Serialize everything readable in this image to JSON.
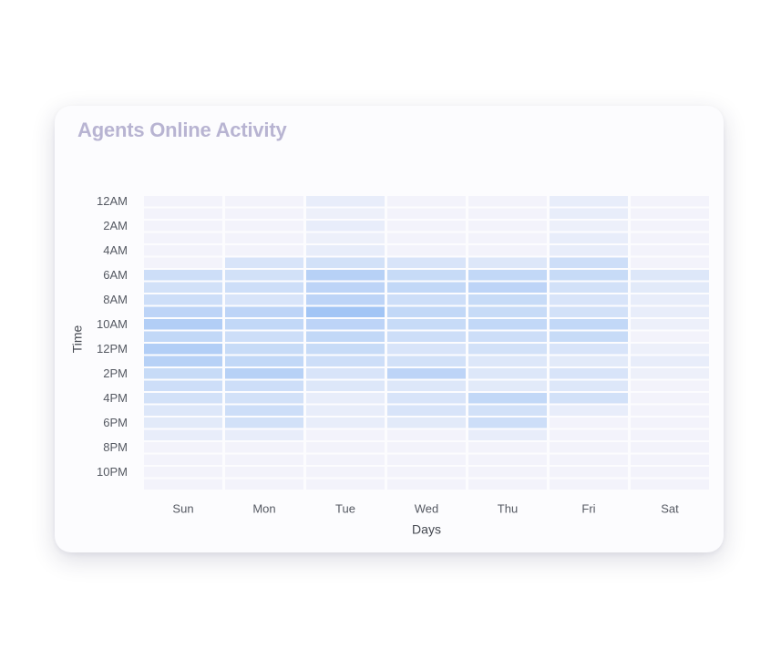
{
  "card": {
    "title": "Agents Online Activity"
  },
  "chart_data": {
    "type": "heatmap",
    "title": "Agents Online Activity",
    "xlabel": "Days",
    "ylabel": "Time",
    "x_categories": [
      "Sun",
      "Mon",
      "Tue",
      "Wed",
      "Thu",
      "Fri",
      "Sat"
    ],
    "y_tick_labels": [
      "12AM",
      "2AM",
      "4AM",
      "6AM",
      "8AM",
      "10AM",
      "12PM",
      "2PM",
      "4PM",
      "6PM",
      "8PM",
      "10PM"
    ],
    "rows_per_tick": 2,
    "value_range": [
      0,
      10
    ],
    "colors": {
      "low": "#f8f6fb",
      "high": "#8cb9f3"
    },
    "values": [
      [
        0.5,
        0.5,
        1.5,
        0.5,
        0.5,
        1.5,
        0.5
      ],
      [
        0.5,
        0.5,
        1.0,
        0.5,
        0.5,
        1.5,
        0.5
      ],
      [
        0.5,
        0.5,
        1.5,
        0.5,
        0.5,
        1.0,
        0.5
      ],
      [
        0.5,
        0.5,
        1.0,
        0.5,
        0.5,
        1.5,
        0.5
      ],
      [
        0.5,
        0.5,
        1.5,
        0.5,
        0.5,
        1.5,
        0.5
      ],
      [
        0.5,
        3.0,
        3.5,
        3.0,
        2.5,
        4.0,
        0.5
      ],
      [
        4.0,
        3.5,
        6.0,
        4.5,
        5.0,
        4.5,
        2.5
      ],
      [
        3.5,
        4.0,
        5.5,
        5.0,
        5.5,
        3.5,
        2.0
      ],
      [
        4.0,
        3.0,
        5.5,
        4.0,
        4.5,
        3.0,
        1.5
      ],
      [
        5.5,
        5.5,
        8.0,
        5.0,
        4.5,
        3.5,
        1.5
      ],
      [
        6.5,
        5.0,
        5.5,
        4.5,
        5.0,
        5.0,
        1.0
      ],
      [
        5.0,
        4.0,
        5.0,
        4.0,
        4.0,
        4.5,
        0.5
      ],
      [
        6.5,
        4.5,
        4.5,
        3.0,
        3.5,
        3.0,
        1.0
      ],
      [
        6.0,
        5.0,
        4.0,
        3.5,
        2.5,
        2.0,
        1.5
      ],
      [
        4.5,
        6.0,
        3.0,
        5.5,
        2.5,
        3.0,
        1.0
      ],
      [
        4.0,
        4.0,
        2.5,
        2.5,
        2.0,
        2.5,
        0.5
      ],
      [
        3.5,
        3.5,
        1.5,
        3.0,
        5.0,
        3.5,
        0.5
      ],
      [
        2.5,
        4.0,
        1.5,
        3.0,
        3.5,
        1.5,
        0.5
      ],
      [
        2.0,
        3.5,
        1.5,
        2.0,
        4.0,
        0.5,
        0.5
      ],
      [
        1.5,
        1.5,
        0.5,
        0.5,
        1.5,
        0.5,
        0.5
      ],
      [
        0.5,
        0.5,
        0.5,
        0.5,
        0.5,
        0.5,
        0.5
      ],
      [
        0.5,
        0.5,
        0.5,
        0.5,
        0.5,
        0.5,
        0.5
      ],
      [
        0.5,
        0.5,
        0.5,
        0.5,
        0.5,
        0.5,
        0.5
      ],
      [
        0.5,
        0.5,
        0.5,
        0.5,
        0.5,
        0.5,
        0.5
      ]
    ]
  }
}
